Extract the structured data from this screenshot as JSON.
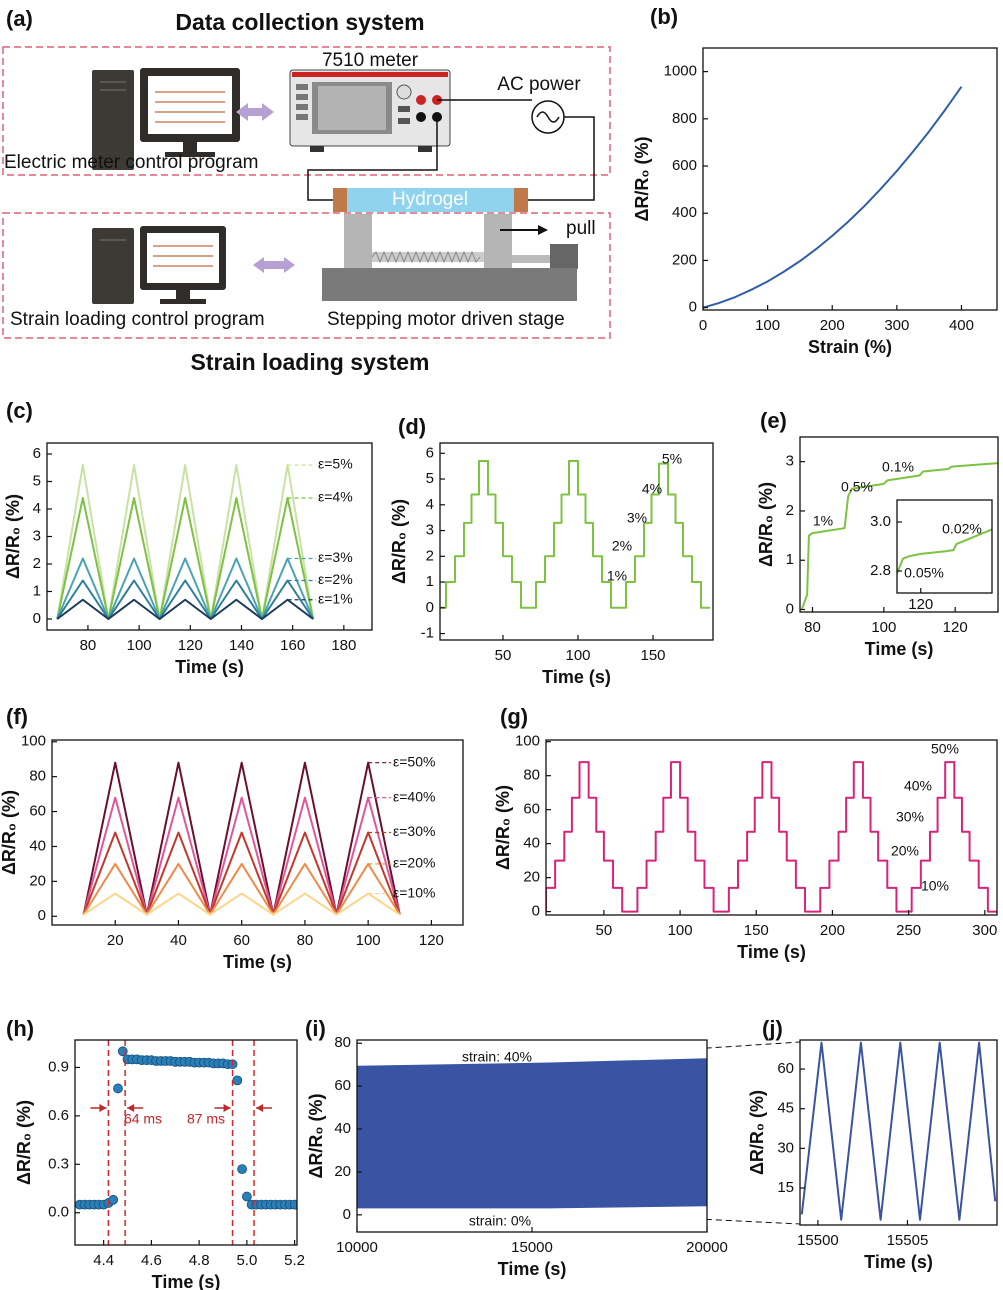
{
  "diagram": {
    "label": "(a)",
    "title": "Data collection system",
    "meter": "7510 meter",
    "ac_power": "AC power",
    "meter_program": "Electric meter control program",
    "hydrogel": "Hydrogel",
    "pull": "pull",
    "strain_program": "Strain loading control program",
    "stage": "Stepping motor driven stage",
    "footer": "Strain loading system"
  },
  "chart_data": [
    {
      "type": "line",
      "label": "(b)",
      "xlabel": "Strain (%)",
      "ylabel": "ΔR/R₀ (%)",
      "xlim": [
        0,
        455
      ],
      "ylim": [
        -10,
        1100
      ],
      "xticks": [
        0,
        100,
        200,
        300,
        400
      ],
      "yticks": [
        0,
        200,
        400,
        600,
        800,
        1000
      ],
      "x": [
        0,
        25,
        50,
        75,
        100,
        125,
        150,
        175,
        200,
        225,
        250,
        275,
        300,
        325,
        350,
        375,
        400
      ],
      "series": [
        {
          "color": "#2f5fa8",
          "values": [
            0,
            20,
            45,
            76,
            111,
            152,
            197,
            248,
            304,
            365,
            431,
            503,
            579,
            661,
            747,
            839,
            936
          ]
        }
      ]
    },
    {
      "type": "line",
      "label": "(c)",
      "xlabel": "Time (s)",
      "ylabel": "ΔR/R₀ (%)",
      "xlim": [
        64,
        191
      ],
      "ylim": [
        -0.4,
        6.4
      ],
      "xticks": [
        80,
        100,
        120,
        140,
        160,
        180
      ],
      "yticks": [
        0,
        1,
        2,
        3,
        4,
        5,
        6
      ],
      "inline_labels": true,
      "x": [
        68,
        78,
        88,
        98,
        108,
        118,
        128,
        138,
        148,
        158,
        168
      ],
      "series": [
        {
          "name": "ε=5%",
          "color": "#c9e2a4",
          "values": [
            0,
            5.6,
            0,
            5.6,
            0,
            5.6,
            0,
            5.6,
            0,
            5.6,
            0
          ]
        },
        {
          "name": "ε=4%",
          "color": "#7dc242",
          "values": [
            0,
            4.4,
            0,
            4.4,
            0,
            4.4,
            0,
            4.4,
            0,
            4.4,
            0
          ]
        },
        {
          "name": "ε=3%",
          "color": "#4aa3b4",
          "values": [
            0,
            2.2,
            0,
            2.2,
            0,
            2.2,
            0,
            2.2,
            0,
            2.2,
            0
          ]
        },
        {
          "name": "ε=2%",
          "color": "#2e7d9c",
          "values": [
            0,
            1.4,
            0,
            1.4,
            0,
            1.4,
            0,
            1.4,
            0,
            1.4,
            0
          ]
        },
        {
          "name": "ε=1%",
          "color": "#1b3a5c",
          "values": [
            0,
            0.7,
            0,
            0.7,
            0,
            0.7,
            0,
            0.7,
            0,
            0.7,
            0
          ]
        }
      ]
    },
    {
      "type": "line",
      "step": true,
      "label": "(d)",
      "xlabel": "Time (s)",
      "ylabel": "ΔR/R₀ (%)",
      "xlim": [
        8,
        190
      ],
      "ylim": [
        -1.25,
        6.4
      ],
      "xticks": [
        50,
        100,
        150
      ],
      "yticks": [
        -1,
        0,
        1,
        2,
        3,
        4,
        5,
        6
      ],
      "annotations": [
        "5%",
        "4%",
        "3%",
        "2%",
        "1%"
      ],
      "x": [
        8,
        12,
        18,
        24,
        29,
        34,
        40,
        45,
        50,
        56,
        62,
        68,
        72,
        78,
        84,
        89,
        94,
        100,
        105,
        110,
        116,
        122,
        128,
        132,
        138,
        144,
        149,
        154,
        160,
        165,
        170,
        176,
        182,
        188
      ],
      "series": [
        {
          "color": "#7dc242",
          "values": [
            0,
            1,
            2,
            3.3,
            4.4,
            5.7,
            4.4,
            3.3,
            2,
            1,
            0,
            0,
            1,
            2,
            3.3,
            4.4,
            5.7,
            4.4,
            3.3,
            2,
            1,
            0,
            0,
            1,
            2,
            3.3,
            4.4,
            5.6,
            4.4,
            3.3,
            2,
            1,
            0,
            0
          ]
        }
      ]
    },
    {
      "type": "line",
      "label": "(e)",
      "xlabel": "Time (s)",
      "ylabel": "ΔR/R₀ (%)",
      "xlim": [
        76.5,
        132
      ],
      "ylim": [
        -0.05,
        3.5
      ],
      "xticks": [
        80,
        100,
        120
      ],
      "yticks": [
        0,
        1,
        2,
        3
      ],
      "annotations": [
        "1%",
        "0.5%",
        "0.1%"
      ],
      "x": [
        77,
        78.5,
        79,
        80,
        89,
        90,
        91,
        100,
        101,
        110,
        111,
        118,
        119,
        132
      ],
      "series": [
        {
          "color": "#7dc242",
          "values": [
            0,
            0.3,
            1.5,
            1.55,
            1.65,
            2.3,
            2.45,
            2.55,
            2.62,
            2.72,
            2.8,
            2.85,
            2.9,
            2.97
          ]
        }
      ]
    },
    {
      "type": "line",
      "xlim": [
        116,
        132
      ],
      "ylim": [
        2.71,
        3.09
      ],
      "xticks": [
        120
      ],
      "yticks": [
        2.8,
        {
          "value": 3,
          "label": "3.0"
        }
      ],
      "annotations": [
        "0.02%",
        "0.05%"
      ],
      "x": [
        116,
        117,
        118,
        120,
        122,
        124,
        125.5,
        126,
        128,
        130,
        132
      ],
      "series": [
        {
          "color": "#7dc242",
          "values": [
            2.79,
            2.85,
            2.86,
            2.87,
            2.875,
            2.88,
            2.885,
            2.91,
            2.93,
            2.95,
            2.97
          ]
        }
      ]
    },
    {
      "type": "line",
      "label": "(f)",
      "xlabel": "Time (s)",
      "ylabel": "ΔR/R₀ (%)",
      "xlim": [
        0,
        130
      ],
      "ylim": [
        -5,
        101
      ],
      "xticks": [
        20,
        40,
        60,
        80,
        100,
        120
      ],
      "yticks": [
        0,
        20,
        40,
        60,
        80,
        100
      ],
      "inline_labels": true,
      "x": [
        10,
        20,
        30,
        40,
        50,
        60,
        70,
        80,
        90,
        100,
        110
      ],
      "series": [
        {
          "name": "ε=50%",
          "color": "#6b0f2a",
          "values": [
            1,
            88,
            1,
            88,
            1,
            88,
            1,
            88,
            1,
            88,
            1
          ]
        },
        {
          "name": "ε=40%",
          "color": "#e0569a",
          "values": [
            1,
            68,
            1,
            68,
            1,
            68,
            1,
            68,
            1,
            68,
            1
          ]
        },
        {
          "name": "ε=30%",
          "color": "#c0392b",
          "values": [
            1,
            48,
            1,
            48,
            1,
            48,
            1,
            48,
            1,
            48,
            1
          ]
        },
        {
          "name": "ε=20%",
          "color": "#ef8a47",
          "values": [
            1,
            30,
            1,
            30,
            1,
            30,
            1,
            30,
            1,
            30,
            1
          ]
        },
        {
          "name": "ε=10%",
          "color": "#fcd58a",
          "values": [
            1,
            13,
            1,
            13,
            1,
            13,
            1,
            13,
            1,
            13,
            1
          ]
        }
      ]
    },
    {
      "type": "line",
      "step": true,
      "label": "(g)",
      "xlabel": "Time (s)",
      "ylabel": "ΔR/R₀ (%)",
      "xlim": [
        12,
        308
      ],
      "ylim": [
        -2,
        101
      ],
      "xticks": [
        50,
        100,
        150,
        200,
        250,
        300
      ],
      "yticks": [
        0,
        20,
        40,
        60,
        80,
        100
      ],
      "annotations": [
        "50%",
        "40%",
        "30%",
        "20%",
        "10%"
      ],
      "x": [
        8,
        12,
        18,
        24,
        29,
        34,
        40,
        45,
        50,
        56,
        62,
        68,
        72,
        78,
        84,
        89,
        94,
        100,
        105,
        110,
        116,
        122,
        128,
        132,
        138,
        144,
        149,
        154,
        160,
        165,
        170,
        176,
        182,
        188,
        192,
        198,
        204,
        209,
        214,
        220,
        225,
        230,
        236,
        242,
        248,
        252,
        258,
        264,
        269,
        274,
        280,
        285,
        290,
        296,
        302,
        308
      ],
      "series": [
        {
          "color": "#d6247a",
          "values": [
            0,
            14,
            30,
            47,
            67,
            88,
            67,
            47,
            30,
            14,
            0,
            0,
            14,
            30,
            47,
            67,
            88,
            67,
            47,
            30,
            14,
            0,
            0,
            14,
            30,
            47,
            67,
            88,
            67,
            47,
            30,
            14,
            0,
            0,
            14,
            30,
            47,
            67,
            88,
            67,
            47,
            30,
            14,
            0,
            0,
            14,
            30,
            47,
            67,
            88,
            67,
            47,
            30,
            14,
            0,
            0
          ]
        }
      ]
    },
    {
      "type": "scatter",
      "label": "(h)",
      "xlabel": "Time (s)",
      "ylabel": "ΔR/R₀ (%)",
      "xlim": [
        4.28,
        5.21
      ],
      "ylim": [
        -0.2,
        1.07
      ],
      "xticks": [
        4.4,
        4.6,
        4.8,
        {
          "value": 5,
          "label": "5.0"
        },
        5.2
      ],
      "yticks": [
        {
          "value": 0,
          "label": "0.0"
        },
        0.3,
        0.6,
        0.9
      ],
      "vlines": [
        4.42,
        4.49,
        4.94,
        5.03
      ],
      "annotations": [
        "64 ms",
        "87 ms"
      ],
      "x": [
        4.3,
        4.32,
        4.34,
        4.36,
        4.38,
        4.4,
        4.42,
        4.44,
        4.46,
        4.48,
        4.5,
        4.52,
        4.54,
        4.56,
        4.58,
        4.6,
        4.62,
        4.64,
        4.66,
        4.68,
        4.7,
        4.72,
        4.74,
        4.76,
        4.78,
        4.8,
        4.82,
        4.84,
        4.86,
        4.88,
        4.9,
        4.92,
        4.94,
        4.96,
        4.98,
        5,
        5.02,
        5.04,
        5.06,
        5.08,
        5.1,
        5.12,
        5.14,
        5.16,
        5.18,
        5.2
      ],
      "series": [
        {
          "color": "#2a7fb8",
          "values": [
            0.05,
            0.05,
            0.05,
            0.05,
            0.05,
            0.05,
            0.06,
            0.08,
            0.77,
            1,
            0.95,
            0.95,
            0.95,
            0.945,
            0.945,
            0.945,
            0.94,
            0.94,
            0.94,
            0.94,
            0.935,
            0.935,
            0.935,
            0.935,
            0.93,
            0.93,
            0.93,
            0.93,
            0.925,
            0.925,
            0.925,
            0.92,
            0.92,
            0.82,
            0.27,
            0.1,
            0.05,
            0.05,
            0.05,
            0.05,
            0.05,
            0.05,
            0.05,
            0.05,
            0.05,
            0.05
          ]
        }
      ]
    },
    {
      "type": "area",
      "label": "(i)",
      "xlabel": "Time (s)",
      "ylabel": "ΔR/R₀ (%)",
      "xlim": [
        10000,
        20000
      ],
      "ylim": [
        -8,
        81.5
      ],
      "xticks": [
        10000,
        15000,
        20000
      ],
      "yticks": [
        0,
        20,
        40,
        60,
        80
      ],
      "annotations": [
        "strain: 40%",
        "strain: 0%"
      ],
      "color": "#3a54a4",
      "x": [
        10000,
        15500,
        20000
      ],
      "upper": [
        69.5,
        71,
        73
      ],
      "lower": [
        3,
        3,
        4
      ]
    },
    {
      "type": "line",
      "label": "(j)",
      "xlabel": "Time (s)",
      "ylabel": "ΔR/R₀ (%)",
      "xlim": [
        15499,
        15510
      ],
      "ylim": [
        1,
        71
      ],
      "xticks": [
        15500,
        15505
      ],
      "yticks": [
        15,
        30,
        45,
        60
      ],
      "x": [
        15499.1,
        15500.2,
        15501.3,
        15502.4,
        15503.5,
        15504.6,
        15505.7,
        15506.8,
        15507.9,
        15509,
        15509.9
      ],
      "series": [
        {
          "color": "#3a54a4",
          "values": [
            5,
            70,
            3,
            70,
            3,
            70,
            3,
            70,
            3,
            70,
            10
          ]
        }
      ]
    }
  ]
}
